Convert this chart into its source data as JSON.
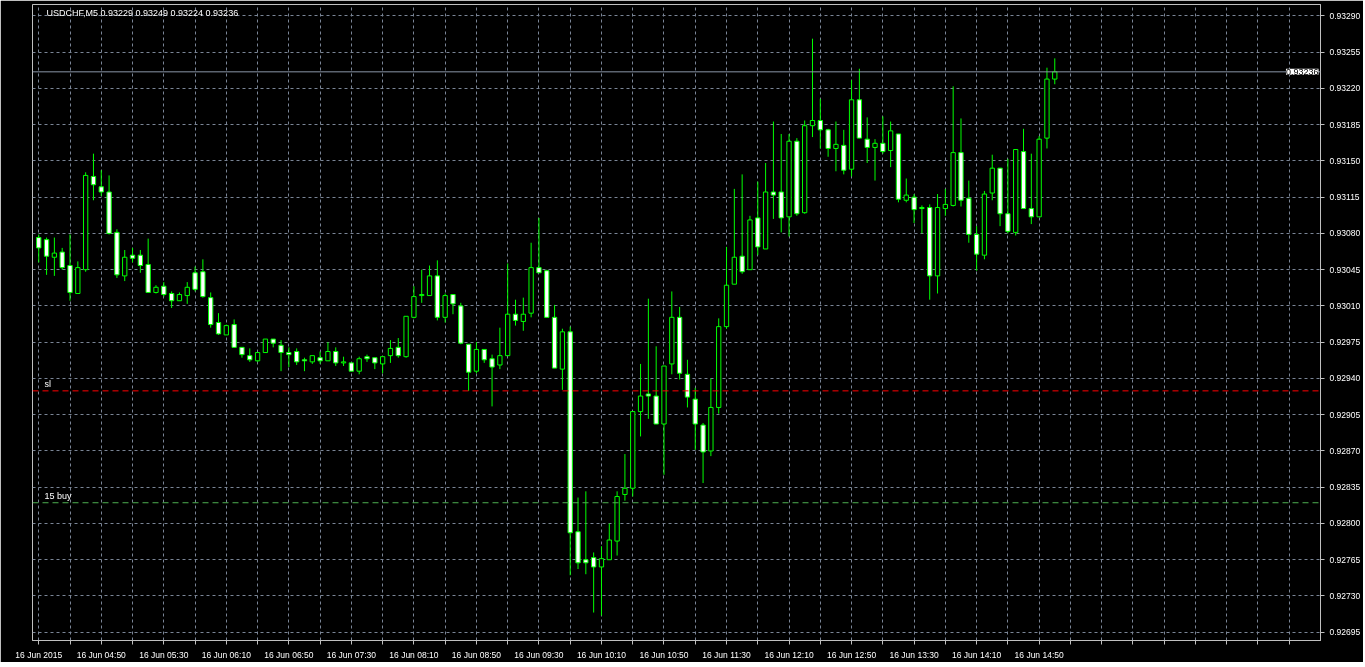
{
  "chart_data": {
    "type": "candlestick",
    "title": "USDCHF,M5  0.93229 0.93249 0.93224 0.93236",
    "color": "#00ff00",
    "x": [
      "2015-06-16T04:10",
      "2015-06-16T04:15",
      "2015-06-16T04:20",
      "2015-06-16T04:25",
      "2015-06-16T04:30",
      "2015-06-16T04:35",
      "2015-06-16T04:40",
      "2015-06-16T04:45",
      "2015-06-16T04:50",
      "2015-06-16T04:55",
      "2015-06-16T05:00",
      "2015-06-16T05:05",
      "2015-06-16T05:10",
      "2015-06-16T05:15",
      "2015-06-16T05:20",
      "2015-06-16T05:25",
      "2015-06-16T05:30",
      "2015-06-16T05:35",
      "2015-06-16T05:40",
      "2015-06-16T05:45",
      "2015-06-16T05:50",
      "2015-06-16T05:55",
      "2015-06-16T06:00",
      "2015-06-16T06:05",
      "2015-06-16T06:10",
      "2015-06-16T06:15",
      "2015-06-16T06:20",
      "2015-06-16T06:25",
      "2015-06-16T06:30",
      "2015-06-16T06:35",
      "2015-06-16T06:40",
      "2015-06-16T06:45",
      "2015-06-16T06:50",
      "2015-06-16T06:55",
      "2015-06-16T07:00",
      "2015-06-16T07:05",
      "2015-06-16T07:10",
      "2015-06-16T07:15",
      "2015-06-16T07:20",
      "2015-06-16T07:25",
      "2015-06-16T07:30",
      "2015-06-16T07:35",
      "2015-06-16T07:40",
      "2015-06-16T07:45",
      "2015-06-16T07:50",
      "2015-06-16T07:55",
      "2015-06-16T08:00",
      "2015-06-16T08:05",
      "2015-06-16T08:10",
      "2015-06-16T08:15",
      "2015-06-16T08:20",
      "2015-06-16T08:25",
      "2015-06-16T08:30",
      "2015-06-16T08:35",
      "2015-06-16T08:40",
      "2015-06-16T08:45",
      "2015-06-16T08:50",
      "2015-06-16T08:55",
      "2015-06-16T09:00",
      "2015-06-16T09:05",
      "2015-06-16T09:10",
      "2015-06-16T09:15",
      "2015-06-16T09:20",
      "2015-06-16T09:25",
      "2015-06-16T09:30",
      "2015-06-16T09:35",
      "2015-06-16T09:40",
      "2015-06-16T09:45",
      "2015-06-16T09:50",
      "2015-06-16T09:55",
      "2015-06-16T10:00",
      "2015-06-16T10:05",
      "2015-06-16T10:10",
      "2015-06-16T10:15",
      "2015-06-16T10:20",
      "2015-06-16T10:25",
      "2015-06-16T10:30",
      "2015-06-16T10:35",
      "2015-06-16T10:40",
      "2015-06-16T10:45",
      "2015-06-16T10:50",
      "2015-06-16T10:55",
      "2015-06-16T11:00",
      "2015-06-16T11:05",
      "2015-06-16T11:10",
      "2015-06-16T11:15",
      "2015-06-16T11:20",
      "2015-06-16T11:25",
      "2015-06-16T11:30",
      "2015-06-16T11:35",
      "2015-06-16T11:40",
      "2015-06-16T11:45",
      "2015-06-16T11:50",
      "2015-06-16T11:55",
      "2015-06-16T12:00",
      "2015-06-16T12:05",
      "2015-06-16T12:10",
      "2015-06-16T12:15",
      "2015-06-16T12:20",
      "2015-06-16T12:25",
      "2015-06-16T12:30",
      "2015-06-16T12:35",
      "2015-06-16T12:40",
      "2015-06-16T12:45",
      "2015-06-16T12:50",
      "2015-06-16T12:55",
      "2015-06-16T13:00",
      "2015-06-16T13:05",
      "2015-06-16T13:10",
      "2015-06-16T13:15",
      "2015-06-16T13:20",
      "2015-06-16T13:25",
      "2015-06-16T13:30",
      "2015-06-16T13:35",
      "2015-06-16T13:40",
      "2015-06-16T13:45",
      "2015-06-16T13:50",
      "2015-06-16T13:55",
      "2015-06-16T14:00",
      "2015-06-16T14:05",
      "2015-06-16T14:10",
      "2015-06-16T14:15",
      "2015-06-16T14:20",
      "2015-06-16T14:25",
      "2015-06-16T14:30",
      "2015-06-16T14:35",
      "2015-06-16T14:40",
      "2015-06-16T14:45",
      "2015-06-16T14:50",
      "2015-06-16T14:55",
      "2015-06-16T15:00"
    ],
    "ohlc": [
      [
        0.93076,
        0.93079,
        0.93052,
        0.93066
      ],
      [
        0.93074,
        0.93076,
        0.9304,
        0.93058
      ],
      [
        0.93057,
        0.93076,
        0.93039,
        0.93061
      ],
      [
        0.93062,
        0.93066,
        0.93045,
        0.93047
      ],
      [
        0.93049,
        0.93079,
        0.93015,
        0.93023
      ],
      [
        0.93022,
        0.93053,
        0.93022,
        0.93047
      ],
      [
        0.93045,
        0.93139,
        0.93043,
        0.93136
      ],
      [
        0.93135,
        0.93157,
        0.93112,
        0.93127
      ],
      [
        0.93125,
        0.93141,
        0.93116,
        0.9312
      ],
      [
        0.9312,
        0.93136,
        0.93079,
        0.9308
      ],
      [
        0.93081,
        0.93084,
        0.93037,
        0.9304
      ],
      [
        0.93039,
        0.93064,
        0.93034,
        0.93057
      ],
      [
        0.93059,
        0.93066,
        0.93052,
        0.93056
      ],
      [
        0.93059,
        0.93064,
        0.93042,
        0.93049
      ],
      [
        0.9305,
        0.93075,
        0.93023,
        0.93023
      ],
      [
        0.93023,
        0.9303,
        0.93022,
        0.93028
      ],
      [
        0.93029,
        0.93033,
        0.93019,
        0.93021
      ],
      [
        0.93022,
        0.93024,
        0.93008,
        0.93015
      ],
      [
        0.93015,
        0.93023,
        0.93015,
        0.93021
      ],
      [
        0.9302,
        0.93033,
        0.93012,
        0.93028
      ],
      [
        0.93042,
        0.93048,
        0.93024,
        0.93026
      ],
      [
        0.93043,
        0.93055,
        0.93018,
        0.93019
      ],
      [
        0.93018,
        0.93023,
        0.92989,
        0.92992
      ],
      [
        0.92994,
        0.93003,
        0.92982,
        0.92983
      ],
      [
        0.92982,
        0.92992,
        0.92982,
        0.92991
      ],
      [
        0.92992,
        0.92997,
        0.9297,
        0.9297
      ],
      [
        0.9297,
        0.9297,
        0.9296,
        0.92963
      ],
      [
        0.92962,
        0.92969,
        0.92956,
        0.92958
      ],
      [
        0.92957,
        0.92965,
        0.92956,
        0.92965
      ],
      [
        0.92965,
        0.92978,
        0.92965,
        0.92978
      ],
      [
        0.92978,
        0.92978,
        0.9297,
        0.92974
      ],
      [
        0.92972,
        0.92977,
        0.92947,
        0.92965
      ],
      [
        0.92965,
        0.9297,
        0.92951,
        0.92963
      ],
      [
        0.92966,
        0.92969,
        0.92953,
        0.92956
      ],
      [
        0.92958,
        0.9296,
        0.92947,
        0.92957
      ],
      [
        0.92956,
        0.92962,
        0.92954,
        0.92962
      ],
      [
        0.9296,
        0.92966,
        0.92954,
        0.92957
      ],
      [
        0.92957,
        0.92975,
        0.92957,
        0.92966
      ],
      [
        0.92966,
        0.9297,
        0.92952,
        0.92955
      ],
      [
        0.92955,
        0.92961,
        0.92952,
        0.92956
      ],
      [
        0.92955,
        0.92955,
        0.92947,
        0.92947
      ],
      [
        0.92947,
        0.92961,
        0.92944,
        0.92959
      ],
      [
        0.92961,
        0.92963,
        0.92956,
        0.92959
      ],
      [
        0.9296,
        0.9296,
        0.92949,
        0.92955
      ],
      [
        0.92954,
        0.92961,
        0.92945,
        0.92961
      ],
      [
        0.92962,
        0.92977,
        0.92955,
        0.92969
      ],
      [
        0.9297,
        0.92979,
        0.9296,
        0.92962
      ],
      [
        0.92961,
        0.93,
        0.9296,
        0.93
      ],
      [
        0.92999,
        0.93029,
        0.92998,
        0.93019
      ],
      [
        0.9302,
        0.93045,
        0.93013,
        0.93021
      ],
      [
        0.9302,
        0.93049,
        0.9302,
        0.93039
      ],
      [
        0.93039,
        0.93054,
        0.92996,
        0.92999
      ],
      [
        0.92999,
        0.93022,
        0.92994,
        0.9302
      ],
      [
        0.93021,
        0.93021,
        0.93002,
        0.93012
      ],
      [
        0.9301,
        0.93013,
        0.92973,
        0.92974
      ],
      [
        0.92973,
        0.92973,
        0.92928,
        0.92946
      ],
      [
        0.92947,
        0.92975,
        0.92945,
        0.92968
      ],
      [
        0.92968,
        0.92968,
        0.92955,
        0.92958
      ],
      [
        0.92959,
        0.92963,
        0.92913,
        0.92951
      ],
      [
        0.92953,
        0.92989,
        0.92949,
        0.92962
      ],
      [
        0.92962,
        0.93051,
        0.92962,
        0.93002
      ],
      [
        0.93002,
        0.93016,
        0.92991,
        0.92996
      ],
      [
        0.92995,
        0.93018,
        0.92986,
        0.93002
      ],
      [
        0.93003,
        0.93071,
        0.92999,
        0.93047
      ],
      [
        0.93047,
        0.93095,
        0.93042,
        0.93042
      ],
      [
        0.93044,
        0.93045,
        0.92999,
        0.92999
      ],
      [
        0.92999,
        0.93011,
        0.9295,
        0.9295
      ],
      [
        0.92949,
        0.92988,
        0.92929,
        0.92985
      ],
      [
        0.92985,
        0.9299,
        0.9275,
        0.92791
      ],
      [
        0.92792,
        0.92825,
        0.92756,
        0.92762
      ],
      [
        0.92765,
        0.92831,
        0.92751,
        0.92762
      ],
      [
        0.92767,
        0.92772,
        0.92714,
        0.92758
      ],
      [
        0.92758,
        0.92778,
        0.92711,
        0.92766
      ],
      [
        0.92765,
        0.928,
        0.92765,
        0.92784
      ],
      [
        0.92783,
        0.92831,
        0.92769,
        0.92826
      ],
      [
        0.92828,
        0.92867,
        0.92822,
        0.92834
      ],
      [
        0.92834,
        0.92908,
        0.92826,
        0.92908
      ],
      [
        0.92908,
        0.92954,
        0.92884,
        0.92923
      ],
      [
        0.92925,
        0.93017,
        0.92901,
        0.92923
      ],
      [
        0.92923,
        0.92971,
        0.92896,
        0.92896
      ],
      [
        0.92896,
        0.92952,
        0.92847,
        0.92952
      ],
      [
        0.92954,
        0.93024,
        0.92944,
        0.92999
      ],
      [
        0.92999,
        0.93009,
        0.92939,
        0.92945
      ],
      [
        0.92944,
        0.92958,
        0.92912,
        0.92922
      ],
      [
        0.9292,
        0.92931,
        0.92871,
        0.92896
      ],
      [
        0.92895,
        0.92897,
        0.92839,
        0.92869
      ],
      [
        0.9287,
        0.9294,
        0.92865,
        0.92912
      ],
      [
        0.92912,
        0.92998,
        0.92906,
        0.9299
      ],
      [
        0.9299,
        0.93067,
        0.92988,
        0.9303
      ],
      [
        0.93031,
        0.93123,
        0.93031,
        0.93057
      ],
      [
        0.93058,
        0.93137,
        0.93041,
        0.93043
      ],
      [
        0.93045,
        0.93097,
        0.93045,
        0.93093
      ],
      [
        0.93095,
        0.9313,
        0.93059,
        0.93067
      ],
      [
        0.93065,
        0.93148,
        0.93065,
        0.9312
      ],
      [
        0.9312,
        0.93188,
        0.93094,
        0.93117
      ],
      [
        0.9312,
        0.93176,
        0.93081,
        0.93095
      ],
      [
        0.93096,
        0.93176,
        0.93077,
        0.93169
      ],
      [
        0.93169,
        0.93172,
        0.93097,
        0.93099
      ],
      [
        0.931,
        0.93189,
        0.93099,
        0.93184
      ],
      [
        0.93184,
        0.93268,
        0.93173,
        0.93189
      ],
      [
        0.93189,
        0.9321,
        0.93162,
        0.9318
      ],
      [
        0.9318,
        0.93181,
        0.93154,
        0.93162
      ],
      [
        0.93162,
        0.93188,
        0.9314,
        0.93166
      ],
      [
        0.93165,
        0.9318,
        0.93137,
        0.93141
      ],
      [
        0.93142,
        0.93228,
        0.93135,
        0.93209
      ],
      [
        0.93209,
        0.93239,
        0.93172,
        0.93172
      ],
      [
        0.93171,
        0.93192,
        0.93148,
        0.93163
      ],
      [
        0.93163,
        0.93171,
        0.93131,
        0.93167
      ],
      [
        0.93167,
        0.93193,
        0.93157,
        0.93159
      ],
      [
        0.9316,
        0.93188,
        0.93144,
        0.93179
      ],
      [
        0.93176,
        0.93176,
        0.9311,
        0.93113
      ],
      [
        0.93112,
        0.93133,
        0.9311,
        0.93117
      ],
      [
        0.93115,
        0.93118,
        0.9309,
        0.93103
      ],
      [
        0.93105,
        0.93107,
        0.9308,
        0.93104
      ],
      [
        0.93105,
        0.93108,
        0.93016,
        0.93039
      ],
      [
        0.93039,
        0.93118,
        0.93022,
        0.93105
      ],
      [
        0.93104,
        0.93123,
        0.93097,
        0.93108
      ],
      [
        0.93107,
        0.93222,
        0.93106,
        0.93158
      ],
      [
        0.93158,
        0.93191,
        0.93106,
        0.93112
      ],
      [
        0.93114,
        0.93131,
        0.93071,
        0.93079
      ],
      [
        0.93079,
        0.93087,
        0.93044,
        0.9306
      ],
      [
        0.93059,
        0.93121,
        0.93055,
        0.93118
      ],
      [
        0.93119,
        0.93156,
        0.93112,
        0.93143
      ],
      [
        0.93143,
        0.93143,
        0.93087,
        0.93099
      ],
      [
        0.93099,
        0.93152,
        0.9308,
        0.93082
      ],
      [
        0.93081,
        0.93161,
        0.93078,
        0.93161
      ],
      [
        0.93159,
        0.93181,
        0.93104,
        0.93104
      ],
      [
        0.93104,
        0.93157,
        0.93089,
        0.93096
      ],
      [
        0.93096,
        0.93174,
        0.93096,
        0.93171
      ],
      [
        0.93172,
        0.9324,
        0.93162,
        0.93229
      ],
      [
        0.93229,
        0.93249,
        0.93224,
        0.93236
      ]
    ],
    "xlim": [
      "2015-06-16T04:06",
      "2015-06-16T17:50"
    ],
    "xticks": [
      {
        "value": "2015-06-16T04:10",
        "label": "16 Jun 2015"
      },
      {
        "value": "2015-06-16T04:30",
        "label": null
      },
      {
        "value": "2015-06-16T04:50",
        "label": "16 Jun 04:50"
      },
      {
        "value": "2015-06-16T05:10",
        "label": null
      },
      {
        "value": "2015-06-16T05:30",
        "label": "16 Jun 05:30"
      },
      {
        "value": "2015-06-16T05:50",
        "label": null
      },
      {
        "value": "2015-06-16T06:10",
        "label": "16 Jun 06:10"
      },
      {
        "value": "2015-06-16T06:30",
        "label": null
      },
      {
        "value": "2015-06-16T06:50",
        "label": "16 Jun 06:50"
      },
      {
        "value": "2015-06-16T07:10",
        "label": null
      },
      {
        "value": "2015-06-16T07:30",
        "label": "16 Jun 07:30"
      },
      {
        "value": "2015-06-16T07:50",
        "label": null
      },
      {
        "value": "2015-06-16T08:10",
        "label": "16 Jun 08:10"
      },
      {
        "value": "2015-06-16T08:30",
        "label": null
      },
      {
        "value": "2015-06-16T08:50",
        "label": "16 Jun 08:50"
      },
      {
        "value": "2015-06-16T09:10",
        "label": null
      },
      {
        "value": "2015-06-16T09:30",
        "label": "16 Jun 09:30"
      },
      {
        "value": "2015-06-16T09:50",
        "label": null
      },
      {
        "value": "2015-06-16T10:10",
        "label": "16 Jun 10:10"
      },
      {
        "value": "2015-06-16T10:30",
        "label": null
      },
      {
        "value": "2015-06-16T10:50",
        "label": "16 Jun 10:50"
      },
      {
        "value": "2015-06-16T11:10",
        "label": null
      },
      {
        "value": "2015-06-16T11:30",
        "label": "16 Jun 11:30"
      },
      {
        "value": "2015-06-16T11:50",
        "label": null
      },
      {
        "value": "2015-06-16T12:10",
        "label": "16 Jun 12:10"
      },
      {
        "value": "2015-06-16T12:30",
        "label": null
      },
      {
        "value": "2015-06-16T12:50",
        "label": "16 Jun 12:50"
      },
      {
        "value": "2015-06-16T13:10",
        "label": null
      },
      {
        "value": "2015-06-16T13:30",
        "label": "16 Jun 13:30"
      },
      {
        "value": "2015-06-16T13:50",
        "label": null
      },
      {
        "value": "2015-06-16T14:10",
        "label": "16 Jun 14:10"
      },
      {
        "value": "2015-06-16T14:30",
        "label": null
      },
      {
        "value": "2015-06-16T14:50",
        "label": "16 Jun 14:50"
      },
      {
        "value": "2015-06-16T15:10",
        "label": null
      },
      {
        "value": "2015-06-16T15:30",
        "label": null
      },
      {
        "value": "2015-06-16T15:50",
        "label": null
      },
      {
        "value": "2015-06-16T16:10",
        "label": null
      },
      {
        "value": "2015-06-16T16:30",
        "label": null
      },
      {
        "value": "2015-06-16T16:50",
        "label": null
      },
      {
        "value": "2015-06-16T17:10",
        "label": null
      },
      {
        "value": "2015-06-16T17:30",
        "label": null
      }
    ],
    "ylim": [
      0.92687,
      0.93301
    ],
    "yticks": [
      {
        "value": 0.92695,
        "label": "0.92695"
      },
      {
        "value": 0.9273,
        "label": "0.92730"
      },
      {
        "value": 0.92765,
        "label": "0.92765"
      },
      {
        "value": 0.928,
        "label": "0.92800"
      },
      {
        "value": 0.92835,
        "label": "0.92835"
      },
      {
        "value": 0.9287,
        "label": "0.92870"
      },
      {
        "value": 0.92905,
        "label": "0.92905"
      },
      {
        "value": 0.9294,
        "label": "0.92940"
      },
      {
        "value": 0.92975,
        "label": "0.92975"
      },
      {
        "value": 0.9301,
        "label": "0.93010"
      },
      {
        "value": 0.93045,
        "label": "0.93045"
      },
      {
        "value": 0.9308,
        "label": "0.93080"
      },
      {
        "value": 0.93115,
        "label": "0.93115"
      },
      {
        "value": 0.9315,
        "label": "0.93150"
      },
      {
        "value": 0.93185,
        "label": "0.93185"
      },
      {
        "value": 0.9322,
        "label": "0.93220"
      },
      {
        "value": 0.93255,
        "label": "0.93255"
      },
      {
        "value": 0.9329,
        "label": "0.93290"
      }
    ],
    "ref_lines": [
      {
        "axis": "y",
        "value": 0.93236,
        "label": "0.93236",
        "color": "#8a96a8",
        "line_style": "solid"
      },
      {
        "axis": "y",
        "value": 0.92928,
        "label": "sl",
        "color": "#ff0000",
        "line_style": "dashed"
      },
      {
        "axis": "y",
        "value": 0.9282,
        "label": "15 buy",
        "color": "#4caf50",
        "line_style": "dashed"
      }
    ],
    "grid": true
  }
}
